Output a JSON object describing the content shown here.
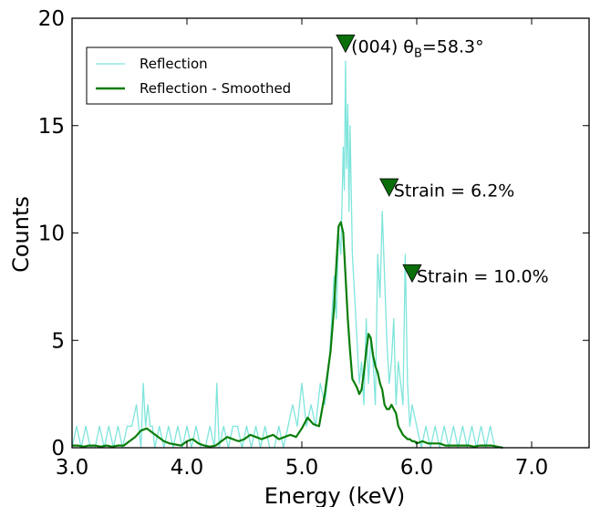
{
  "chart_data": {
    "type": "line",
    "xlabel": "Energy (keV)",
    "ylabel": "Counts",
    "xlim": [
      3.0,
      7.5
    ],
    "ylim": [
      0,
      20
    ],
    "x_ticks": [
      "3.0",
      "4.0",
      "5.0",
      "6.0",
      "7.0"
    ],
    "y_ticks": [
      "0",
      "5",
      "10",
      "15",
      "20"
    ],
    "grid": false,
    "legend_position": "top-left",
    "legend": [
      "Reflection",
      "Reflection - Smoothed"
    ],
    "colors": {
      "raw": "#7fe5dc",
      "smoothed": "#0a7d0a",
      "marker": "#0a6e0a"
    },
    "series": [
      {
        "name": "Reflection",
        "x": [
          3.0,
          3.04,
          3.08,
          3.12,
          3.16,
          3.2,
          3.24,
          3.28,
          3.32,
          3.36,
          3.4,
          3.44,
          3.48,
          3.52,
          3.56,
          3.6,
          3.62,
          3.64,
          3.66,
          3.68,
          3.7,
          3.72,
          3.76,
          3.8,
          3.84,
          3.88,
          3.92,
          3.96,
          4.0,
          4.04,
          4.08,
          4.12,
          4.16,
          4.2,
          4.24,
          4.26,
          4.28,
          4.32,
          4.36,
          4.4,
          4.44,
          4.48,
          4.52,
          4.56,
          4.6,
          4.64,
          4.68,
          4.72,
          4.76,
          4.8,
          4.84,
          4.88,
          4.92,
          4.96,
          5.0,
          5.04,
          5.08,
          5.12,
          5.16,
          5.2,
          5.24,
          5.28,
          5.3,
          5.32,
          5.34,
          5.36,
          5.37,
          5.38,
          5.39,
          5.4,
          5.41,
          5.42,
          5.44,
          5.46,
          5.48,
          5.5,
          5.52,
          5.54,
          5.56,
          5.58,
          5.6,
          5.62,
          5.64,
          5.66,
          5.68,
          5.7,
          5.72,
          5.74,
          5.76,
          5.78,
          5.8,
          5.82,
          5.84,
          5.86,
          5.88,
          5.9,
          5.92,
          5.94,
          5.96,
          6.0,
          6.04,
          6.08,
          6.12,
          6.16,
          6.2,
          6.24,
          6.28,
          6.32,
          6.36,
          6.4,
          6.44,
          6.48,
          6.52,
          6.56,
          6.6,
          6.64,
          6.68,
          6.72
        ],
        "y": [
          0,
          1,
          0,
          1,
          0,
          0,
          1,
          0,
          1,
          0,
          1,
          0,
          1,
          1,
          2,
          0,
          3,
          1,
          2,
          1,
          1,
          0,
          1,
          0,
          1,
          0,
          1,
          0,
          1,
          0,
          1,
          0,
          0,
          1,
          0,
          3,
          0,
          1,
          0,
          1,
          1,
          0,
          1,
          0,
          1,
          0,
          1,
          0,
          0,
          1,
          0,
          1,
          2,
          1,
          3,
          1,
          2,
          1,
          3,
          2,
          4,
          8,
          6,
          10,
          9,
          14,
          12,
          18,
          13,
          16,
          11,
          15,
          9,
          7,
          5,
          3,
          4,
          2,
          6,
          3,
          5,
          4,
          2,
          9,
          7,
          11,
          8,
          5,
          3,
          4,
          6,
          2,
          4,
          3,
          2,
          9,
          3,
          1,
          2,
          1,
          0,
          1,
          0,
          1,
          0,
          1,
          0,
          1,
          0,
          1,
          0,
          1,
          0,
          1,
          0,
          1,
          0,
          0
        ]
      },
      {
        "name": "Reflection - Smoothed",
        "x": [
          3.0,
          3.05,
          3.1,
          3.15,
          3.2,
          3.25,
          3.3,
          3.35,
          3.4,
          3.45,
          3.5,
          3.55,
          3.6,
          3.65,
          3.7,
          3.75,
          3.8,
          3.85,
          3.9,
          3.95,
          4.0,
          4.05,
          4.1,
          4.15,
          4.2,
          4.25,
          4.3,
          4.35,
          4.4,
          4.45,
          4.5,
          4.55,
          4.6,
          4.65,
          4.7,
          4.75,
          4.8,
          4.85,
          4.9,
          4.95,
          5.0,
          5.05,
          5.1,
          5.15,
          5.2,
          5.25,
          5.28,
          5.3,
          5.32,
          5.34,
          5.36,
          5.38,
          5.4,
          5.42,
          5.44,
          5.46,
          5.48,
          5.5,
          5.52,
          5.54,
          5.56,
          5.58,
          5.6,
          5.62,
          5.64,
          5.66,
          5.68,
          5.7,
          5.72,
          5.74,
          5.76,
          5.78,
          5.8,
          5.82,
          5.84,
          5.86,
          5.88,
          5.9,
          5.92,
          5.94,
          5.96,
          5.98,
          6.0,
          6.05,
          6.1,
          6.15,
          6.2,
          6.25,
          6.3,
          6.35,
          6.4,
          6.45,
          6.5,
          6.55,
          6.6,
          6.65,
          6.7,
          6.75
        ],
        "y": [
          0.1,
          0.1,
          0.05,
          0.1,
          0.1,
          0.05,
          0.1,
          0.05,
          0.1,
          0.1,
          0.3,
          0.5,
          0.8,
          0.9,
          0.7,
          0.5,
          0.3,
          0.2,
          0.15,
          0.1,
          0.3,
          0.4,
          0.2,
          0.1,
          0.05,
          0.1,
          0.3,
          0.5,
          0.4,
          0.3,
          0.4,
          0.6,
          0.5,
          0.4,
          0.5,
          0.6,
          0.4,
          0.5,
          0.6,
          0.5,
          0.9,
          1.4,
          1.1,
          1.0,
          2.5,
          4.5,
          6.5,
          8.5,
          10.3,
          10.5,
          10.0,
          8.0,
          6.0,
          4.5,
          3.2,
          3.0,
          2.8,
          2.5,
          2.7,
          3.5,
          4.5,
          5.3,
          5.1,
          4.3,
          3.8,
          3.5,
          3.0,
          2.7,
          2.0,
          1.8,
          1.8,
          2.0,
          1.8,
          1.6,
          1.0,
          0.8,
          0.6,
          0.5,
          0.4,
          0.4,
          0.3,
          0.3,
          0.2,
          0.3,
          0.2,
          0.2,
          0.2,
          0.1,
          0.1,
          0.1,
          0.1,
          0.1,
          0.05,
          0.1,
          0.1,
          0.1,
          0.05,
          0.0
        ]
      }
    ],
    "annotations": [
      {
        "marker_x": 5.38,
        "marker_y": 18.8,
        "text_x": 5.43,
        "text_y": 18.7,
        "text": "(004) θ",
        "sub": "B",
        "tail": "=58.3°"
      },
      {
        "marker_x": 5.76,
        "marker_y": 12.1,
        "text_x": 5.8,
        "text_y": 12.0,
        "text": "Strain = 6.2%"
      },
      {
        "marker_x": 5.96,
        "marker_y": 8.1,
        "text_x": 6.0,
        "text_y": 8.0,
        "text": "Strain = 10.0%"
      }
    ]
  }
}
